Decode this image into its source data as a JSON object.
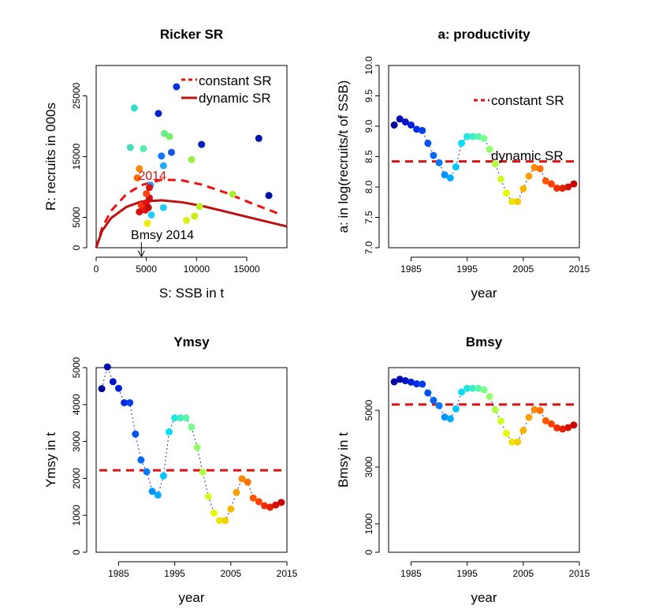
{
  "chart_data": [
    {
      "id": "ricker",
      "type": "scatter",
      "title": "Ricker SR",
      "xlabel": "S: SSB in t",
      "ylabel": "R: recruits in 000s",
      "xlim": [
        0,
        19000
      ],
      "ylim": [
        0,
        30000
      ],
      "x_ticks": [
        0,
        5000,
        10000,
        15000
      ],
      "y_ticks": [
        0,
        5000,
        15000,
        25000
      ],
      "legend": {
        "position": "top-right",
        "entries": [
          "constant SR",
          "dynamic SR"
        ]
      },
      "colors": {
        "constant": "#ee1111",
        "dynamic": "#bb1111"
      },
      "points": [
        {
          "x": 3800,
          "y": 23000,
          "color": "#33ddcc"
        },
        {
          "x": 3400,
          "y": 16500,
          "color": "#44ddbb"
        },
        {
          "x": 4300,
          "y": 13000,
          "color": "#ff8800"
        },
        {
          "x": 4100,
          "y": 11500,
          "color": "#ff6600"
        },
        {
          "x": 4700,
          "y": 16300,
          "color": "#55eeaa"
        },
        {
          "x": 5400,
          "y": 10300,
          "color": "#2299ff"
        },
        {
          "x": 5100,
          "y": 4000,
          "color": "#eeee00"
        },
        {
          "x": 5500,
          "y": 5400,
          "color": "#22ccff"
        },
        {
          "x": 6200,
          "y": 22100,
          "color": "#0022cc"
        },
        {
          "x": 6500,
          "y": 15100,
          "color": "#1177ff"
        },
        {
          "x": 6700,
          "y": 13500,
          "color": "#22aaff"
        },
        {
          "x": 6700,
          "y": 6600,
          "color": "#22ccee"
        },
        {
          "x": 6800,
          "y": 18800,
          "color": "#66ee88"
        },
        {
          "x": 7300,
          "y": 18300,
          "color": "#77ee66"
        },
        {
          "x": 7500,
          "y": 15700,
          "color": "#1155ee"
        },
        {
          "x": 8000,
          "y": 26500,
          "color": "#0033dd"
        },
        {
          "x": 9000,
          "y": 4500,
          "color": "#ddee11"
        },
        {
          "x": 9500,
          "y": 14500,
          "color": "#99ee44"
        },
        {
          "x": 9800,
          "y": 5200,
          "color": "#ccee11"
        },
        {
          "x": 10500,
          "y": 17000,
          "color": "#0022bb"
        },
        {
          "x": 10300,
          "y": 6800,
          "color": "#bbee22"
        },
        {
          "x": 13600,
          "y": 8800,
          "color": "#aaee33"
        },
        {
          "x": 16200,
          "y": 18000,
          "color": "#0011aa"
        },
        {
          "x": 17200,
          "y": 8600,
          "color": "#0011aa"
        },
        {
          "x": 4300,
          "y": 5900,
          "color": "#dd1111"
        },
        {
          "x": 4600,
          "y": 6300,
          "color": "#cc1111"
        },
        {
          "x": 4800,
          "y": 6700,
          "color": "#ee2211"
        },
        {
          "x": 4500,
          "y": 7000,
          "color": "#ff3311"
        },
        {
          "x": 5000,
          "y": 7400,
          "color": "#dd1111"
        },
        {
          "x": 4900,
          "y": 6200,
          "color": "#ee1111"
        },
        {
          "x": 5200,
          "y": 6600,
          "color": "#bb1111"
        },
        {
          "x": 5300,
          "y": 8200,
          "color": "#cc1111"
        },
        {
          "x": 5000,
          "y": 8900,
          "color": "#ff4411"
        },
        {
          "x": 5300,
          "y": 9900,
          "color": "#dd1111"
        }
      ],
      "constant_curve": {
        "x": [
          0,
          600,
          1500,
          3000,
          4500,
          6500,
          8500,
          10500,
          13000,
          15500,
          18500
        ],
        "y": [
          0,
          3300,
          6100,
          8800,
          10300,
          11200,
          11100,
          10400,
          9000,
          7300,
          5400
        ]
      },
      "dynamic_curve": {
        "x": [
          0,
          600,
          1500,
          3000,
          4500,
          6500,
          8500,
          10500,
          13000,
          15500,
          19000
        ],
        "y": [
          0,
          2800,
          4900,
          6700,
          7600,
          7800,
          7500,
          6900,
          5900,
          4900,
          3500
        ]
      },
      "annotations": [
        {
          "text": "2014",
          "x": 4200,
          "y": 11200,
          "color": "#dd1111"
        },
        {
          "text": "Bmsy 2014",
          "x": 3300,
          "y": 1700,
          "color": "#000000"
        }
      ]
    },
    {
      "id": "productivity",
      "type": "line",
      "title": "a: productivity",
      "xlabel": "year",
      "ylabel": "a: in log(recruits/t of SSB)",
      "xlim": [
        1981,
        2015
      ],
      "ylim": [
        7.0,
        10.0
      ],
      "x_ticks": [
        1985,
        1995,
        2005,
        2015
      ],
      "y_ticks": [
        7.0,
        7.5,
        8.0,
        8.5,
        9.0,
        9.5,
        10.0
      ],
      "constant_value": 8.42,
      "legend": {
        "position": "top-right",
        "entries": [
          "constant SR",
          "dynamic SR"
        ]
      },
      "x": [
        1982,
        1983,
        1984,
        1985,
        1986,
        1987,
        1988,
        1989,
        1990,
        1991,
        1992,
        1993,
        1994,
        1995,
        1996,
        1997,
        1998,
        1999,
        2000,
        2001,
        2002,
        2003,
        2004,
        2005,
        2006,
        2007,
        2008,
        2009,
        2010,
        2011,
        2012,
        2013,
        2014
      ],
      "y": [
        9.02,
        9.12,
        9.07,
        9.02,
        8.95,
        8.93,
        8.72,
        8.52,
        8.4,
        8.2,
        8.15,
        8.33,
        8.72,
        8.83,
        8.83,
        8.83,
        8.8,
        8.62,
        8.38,
        8.13,
        7.9,
        7.76,
        7.76,
        7.97,
        8.18,
        8.32,
        8.3,
        8.1,
        8.05,
        7.98,
        7.98,
        8.0,
        8.05
      ]
    },
    {
      "id": "ymsy",
      "type": "line",
      "title": "Ymsy",
      "xlabel": "year",
      "ylabel": "Ymsy in t",
      "xlim": [
        1981,
        2015
      ],
      "ylim": [
        0,
        5000
      ],
      "x_ticks": [
        1985,
        1995,
        2005,
        2015
      ],
      "y_ticks": [
        0,
        1000,
        2000,
        3000,
        4000,
        5000
      ],
      "constant_value": 2220,
      "x": [
        1982,
        1983,
        1984,
        1985,
        1986,
        1987,
        1988,
        1989,
        1990,
        1991,
        1992,
        1993,
        1994,
        1995,
        1996,
        1997,
        1998,
        1999,
        2000,
        2001,
        2002,
        2003,
        2004,
        2005,
        2006,
        2007,
        2008,
        2009,
        2010,
        2011,
        2012,
        2013,
        2014
      ],
      "y": [
        4430,
        5020,
        4620,
        4440,
        4050,
        4050,
        3200,
        2500,
        2180,
        1650,
        1550,
        2070,
        3260,
        3640,
        3640,
        3640,
        3390,
        2840,
        2170,
        1510,
        1060,
        860,
        860,
        1170,
        1620,
        1990,
        1900,
        1470,
        1370,
        1260,
        1220,
        1280,
        1350
      ]
    },
    {
      "id": "bmsy",
      "type": "line",
      "title": "Bmsy",
      "xlabel": "year",
      "ylabel": "Bmsy in t",
      "xlim": [
        1981,
        2015
      ],
      "ylim": [
        0,
        6500
      ],
      "x_ticks": [
        1985,
        1995,
        2005,
        2015
      ],
      "y_ticks": [
        0,
        1000,
        3000,
        5000
      ],
      "constant_value": 5200,
      "x": [
        1982,
        1983,
        1984,
        1985,
        1986,
        1987,
        1988,
        1989,
        1990,
        1991,
        1992,
        1993,
        1994,
        1995,
        1996,
        1997,
        1998,
        1999,
        2000,
        2001,
        2002,
        2003,
        2004,
        2005,
        2006,
        2007,
        2008,
        2009,
        2010,
        2011,
        2012,
        2013,
        2014
      ],
      "y": [
        6000,
        6090,
        6040,
        5990,
        5930,
        5920,
        5610,
        5350,
        5160,
        4760,
        4700,
        5050,
        5640,
        5770,
        5770,
        5770,
        5720,
        5480,
        5020,
        4620,
        4190,
        3880,
        3880,
        4290,
        4750,
        5020,
        4990,
        4630,
        4520,
        4380,
        4340,
        4390,
        4480
      ]
    }
  ]
}
